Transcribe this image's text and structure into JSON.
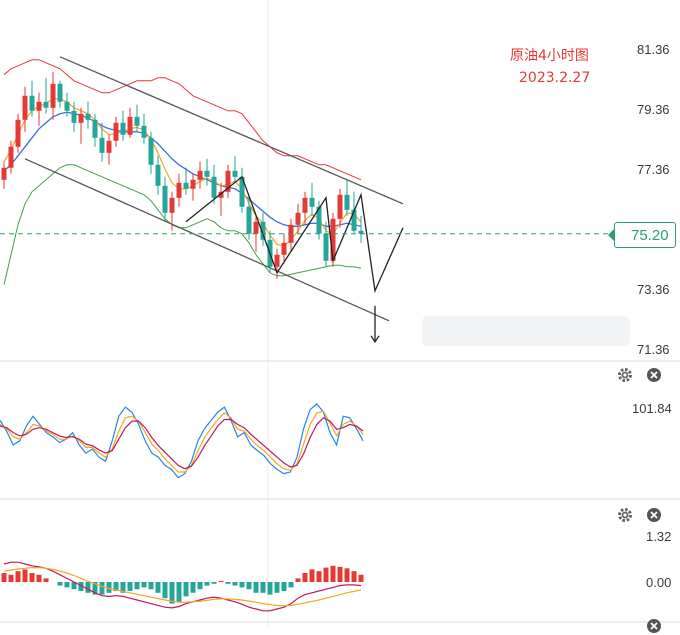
{
  "title": {
    "line1": "原油4小时图",
    "line2": "2023.2.27"
  },
  "price_axis": [
    "81.36",
    "79.36",
    "77.36",
    "75.20",
    "73.36",
    "71.36"
  ],
  "current_price": "75.20",
  "rsi_axis": [
    "101.84"
  ],
  "macd_axis": [
    "1.32",
    "0.00"
  ],
  "colors": {
    "up": "#e53935",
    "down": "#26a69a",
    "ma_blue": "#3a6fd8",
    "ma_orange": "#f5a623",
    "band_red": "#e53935",
    "band_green": "#43a047",
    "channel": "#555555"
  },
  "icons": [
    "gear-icon",
    "close-icon"
  ],
  "chart_data": [
    {
      "type": "candlestick",
      "ylim": [
        71.0,
        82.0
      ],
      "price_ticks": [
        81.36,
        79.36,
        77.36,
        73.36,
        71.36
      ],
      "current": 75.2,
      "candles": [
        [
          77.0,
          77.6,
          76.7,
          77.4
        ],
        [
          77.4,
          78.3,
          77.2,
          78.1
        ],
        [
          78.1,
          79.2,
          77.9,
          79.0
        ],
        [
          79.0,
          80.1,
          78.6,
          79.8
        ],
        [
          79.8,
          80.3,
          79.1,
          79.3
        ],
        [
          79.3,
          79.9,
          78.8,
          79.6
        ],
        [
          79.6,
          80.4,
          79.2,
          79.4
        ],
        [
          79.4,
          80.6,
          79.0,
          80.2
        ],
        [
          80.2,
          80.3,
          79.4,
          79.6
        ],
        [
          79.6,
          79.9,
          79.1,
          79.3
        ],
        [
          79.3,
          79.6,
          78.6,
          78.9
        ],
        [
          78.9,
          79.4,
          78.2,
          79.2
        ],
        [
          79.2,
          79.6,
          78.7,
          79.0
        ],
        [
          79.0,
          79.2,
          78.1,
          78.4
        ],
        [
          78.4,
          78.9,
          77.6,
          77.9
        ],
        [
          77.9,
          78.5,
          77.5,
          78.3
        ],
        [
          78.3,
          79.1,
          78.1,
          78.9
        ],
        [
          78.9,
          79.3,
          78.3,
          78.5
        ],
        [
          78.5,
          79.4,
          78.4,
          79.1
        ],
        [
          79.1,
          79.5,
          78.6,
          78.8
        ],
        [
          78.8,
          79.2,
          78.2,
          78.4
        ],
        [
          78.4,
          78.6,
          77.2,
          77.5
        ],
        [
          77.5,
          77.8,
          76.5,
          76.8
        ],
        [
          76.8,
          77.1,
          75.6,
          75.9
        ],
        [
          75.9,
          76.6,
          75.3,
          76.4
        ],
        [
          76.4,
          77.2,
          76.1,
          76.9
        ],
        [
          76.9,
          77.4,
          76.5,
          76.7
        ],
        [
          76.7,
          77.2,
          76.3,
          77.0
        ],
        [
          77.0,
          77.6,
          76.7,
          77.3
        ],
        [
          77.3,
          77.7,
          76.8,
          77.1
        ],
        [
          77.1,
          77.5,
          76.2,
          76.4
        ],
        [
          76.4,
          76.9,
          75.8,
          76.6
        ],
        [
          76.6,
          77.5,
          76.4,
          77.3
        ],
        [
          77.3,
          77.8,
          76.9,
          77.1
        ],
        [
          77.1,
          77.4,
          75.9,
          76.1
        ],
        [
          76.1,
          76.5,
          75.0,
          75.2
        ],
        [
          75.2,
          75.8,
          74.6,
          75.6
        ],
        [
          75.6,
          75.9,
          74.8,
          75.0
        ],
        [
          75.0,
          75.3,
          73.9,
          74.1
        ],
        [
          74.1,
          74.7,
          73.7,
          74.5
        ],
        [
          74.5,
          75.2,
          74.2,
          74.9
        ],
        [
          74.9,
          75.7,
          74.6,
          75.5
        ],
        [
          75.5,
          76.2,
          75.2,
          75.9
        ],
        [
          75.9,
          76.6,
          75.5,
          76.4
        ],
        [
          76.4,
          76.9,
          75.8,
          76.1
        ],
        [
          76.1,
          76.3,
          75.0,
          75.2
        ],
        [
          75.2,
          75.6,
          74.1,
          74.3
        ],
        [
          74.3,
          75.9,
          74.1,
          75.7
        ],
        [
          75.7,
          76.7,
          75.4,
          76.5
        ],
        [
          76.5,
          77.0,
          75.8,
          76.0
        ],
        [
          76.0,
          76.6,
          75.2,
          75.3
        ],
        [
          75.3,
          75.8,
          74.9,
          75.2
        ]
      ],
      "ma_blue": [
        77.3,
        77.5,
        77.8,
        78.1,
        78.4,
        78.7,
        78.9,
        79.1,
        79.2,
        79.25,
        79.2,
        79.15,
        79.05,
        78.95,
        78.8,
        78.7,
        78.65,
        78.6,
        78.6,
        78.6,
        78.55,
        78.4,
        78.2,
        77.95,
        77.7,
        77.5,
        77.35,
        77.2,
        77.1,
        77.0,
        76.9,
        76.8,
        76.75,
        76.7,
        76.55,
        76.35,
        76.15,
        75.95,
        75.75,
        75.6,
        75.5,
        75.45,
        75.45,
        75.5,
        75.55,
        75.55,
        75.45,
        75.45,
        75.5,
        75.55,
        75.5,
        75.45
      ],
      "ma_orange": [
        77.6,
        78.0,
        78.5,
        79.0,
        79.3,
        79.45,
        79.55,
        79.7,
        79.7,
        79.6,
        79.4,
        79.3,
        79.2,
        79.0,
        78.7,
        78.5,
        78.55,
        78.6,
        78.7,
        78.75,
        78.65,
        78.35,
        77.9,
        77.35,
        76.9,
        76.7,
        76.7,
        76.8,
        76.95,
        77.05,
        76.95,
        76.8,
        76.85,
        76.95,
        76.7,
        76.2,
        75.8,
        75.55,
        75.15,
        74.85,
        74.8,
        75.0,
        75.3,
        75.65,
        75.85,
        75.7,
        75.3,
        75.2,
        75.55,
        75.9,
        75.85,
        75.6
      ],
      "band_red": [
        80.5,
        80.7,
        80.8,
        80.9,
        81.0,
        81.0,
        80.9,
        80.8,
        80.7,
        80.5,
        80.3,
        80.2,
        80.1,
        80.0,
        79.9,
        79.9,
        80.0,
        80.1,
        80.2,
        80.3,
        80.3,
        80.3,
        80.4,
        80.4,
        80.3,
        80.2,
        80.0,
        79.8,
        79.7,
        79.6,
        79.5,
        79.4,
        79.3,
        79.3,
        79.2,
        78.9,
        78.6,
        78.3,
        78.1,
        77.9,
        77.8,
        77.8,
        77.8,
        77.7,
        77.6,
        77.5,
        77.5,
        77.4,
        77.3,
        77.2,
        77.1,
        77.0
      ],
      "band_green": [
        73.5,
        74.5,
        75.5,
        76.2,
        76.6,
        76.8,
        77.0,
        77.2,
        77.4,
        77.5,
        77.5,
        77.4,
        77.3,
        77.2,
        77.1,
        77.0,
        76.9,
        76.8,
        76.7,
        76.6,
        76.5,
        76.3,
        76.0,
        75.7,
        75.5,
        75.4,
        75.4,
        75.5,
        75.6,
        75.7,
        75.6,
        75.4,
        75.3,
        75.3,
        75.2,
        74.9,
        74.5,
        74.2,
        73.9,
        73.8,
        73.8,
        73.85,
        73.9,
        73.95,
        74.0,
        74.05,
        74.1,
        74.15,
        74.15,
        74.1,
        74.1,
        74.05
      ]
    },
    {
      "type": "line",
      "name": "RSI",
      "ylim": [
        0,
        110
      ],
      "series": [
        {
          "values": [
            85,
            72,
            55,
            60,
            78,
            90,
            80,
            70,
            65,
            58,
            62,
            70,
            55,
            45,
            50,
            40,
            35,
            60,
            90,
            101,
            95,
            80,
            60,
            45,
            40,
            30,
            25,
            15,
            20,
            35,
            60,
            75,
            85,
            95,
            101,
            85,
            65,
            70,
            55,
            48,
            42,
            32,
            25,
            20,
            22,
            40,
            75,
            98,
            105,
            95,
            70,
            55,
            90,
            88,
            75,
            60
          ]
        },
        {
          "values": [
            80,
            75,
            65,
            62,
            70,
            80,
            78,
            72,
            68,
            62,
            62,
            66,
            60,
            52,
            52,
            45,
            40,
            50,
            72,
            88,
            90,
            84,
            70,
            56,
            48,
            38,
            30,
            22,
            22,
            30,
            48,
            64,
            76,
            86,
            94,
            88,
            74,
            72,
            62,
            54,
            48,
            40,
            32,
            26,
            24,
            32,
            56,
            80,
            94,
            96,
            82,
            66,
            80,
            84,
            78,
            68
          ]
        },
        {
          "values": [
            78,
            76,
            70,
            66,
            68,
            74,
            76,
            74,
            70,
            66,
            64,
            65,
            62,
            56,
            54,
            49,
            45,
            48,
            62,
            76,
            84,
            84,
            76,
            64,
            54,
            46,
            38,
            30,
            26,
            29,
            40,
            54,
            66,
            78,
            86,
            86,
            80,
            76,
            68,
            61,
            54,
            47,
            40,
            33,
            28,
            30,
            44,
            64,
            80,
            88,
            84,
            74,
            76,
            80,
            78,
            72
          ]
        }
      ]
    },
    {
      "type": "bar",
      "name": "MACD",
      "ylim": [
        -0.9,
        1.5
      ],
      "histogram": [
        0.25,
        0.2,
        0.3,
        0.35,
        0.25,
        0.2,
        0.1,
        0.0,
        -0.1,
        -0.15,
        -0.2,
        -0.25,
        -0.3,
        -0.35,
        -0.35,
        -0.3,
        -0.25,
        -0.3,
        -0.25,
        -0.2,
        -0.15,
        -0.2,
        -0.3,
        -0.45,
        -0.6,
        -0.55,
        -0.4,
        -0.3,
        -0.2,
        -0.1,
        -0.05,
        0.03,
        -0.05,
        -0.1,
        -0.15,
        -0.2,
        -0.3,
        -0.3,
        -0.35,
        -0.3,
        -0.25,
        -0.15,
        0.1,
        0.25,
        0.35,
        0.3,
        0.4,
        0.45,
        0.42,
        0.38,
        0.3,
        0.2
      ],
      "dif": [
        0.5,
        0.55,
        0.55,
        0.5,
        0.45,
        0.42,
        0.38,
        0.3,
        0.2,
        0.1,
        0.0,
        -0.1,
        -0.2,
        -0.3,
        -0.38,
        -0.4,
        -0.38,
        -0.4,
        -0.45,
        -0.5,
        -0.55,
        -0.6,
        -0.65,
        -0.7,
        -0.72,
        -0.68,
        -0.6,
        -0.55,
        -0.5,
        -0.45,
        -0.42,
        -0.45,
        -0.5,
        -0.55,
        -0.62,
        -0.7,
        -0.75,
        -0.8,
        -0.8,
        -0.75,
        -0.7,
        -0.6,
        -0.45,
        -0.35,
        -0.3,
        -0.25,
        -0.2,
        -0.15,
        -0.1,
        -0.08,
        -0.08,
        -0.1
      ],
      "dea": [
        0.3,
        0.33,
        0.36,
        0.38,
        0.4,
        0.4,
        0.38,
        0.35,
        0.3,
        0.25,
        0.18,
        0.1,
        0.02,
        -0.05,
        -0.12,
        -0.18,
        -0.22,
        -0.26,
        -0.3,
        -0.34,
        -0.38,
        -0.42,
        -0.46,
        -0.5,
        -0.54,
        -0.56,
        -0.56,
        -0.55,
        -0.53,
        -0.51,
        -0.48,
        -0.47,
        -0.47,
        -0.48,
        -0.5,
        -0.53,
        -0.56,
        -0.6,
        -0.63,
        -0.65,
        -0.66,
        -0.65,
        -0.62,
        -0.58,
        -0.54,
        -0.5,
        -0.45,
        -0.4,
        -0.35,
        -0.3,
        -0.26,
        -0.22
      ]
    }
  ]
}
